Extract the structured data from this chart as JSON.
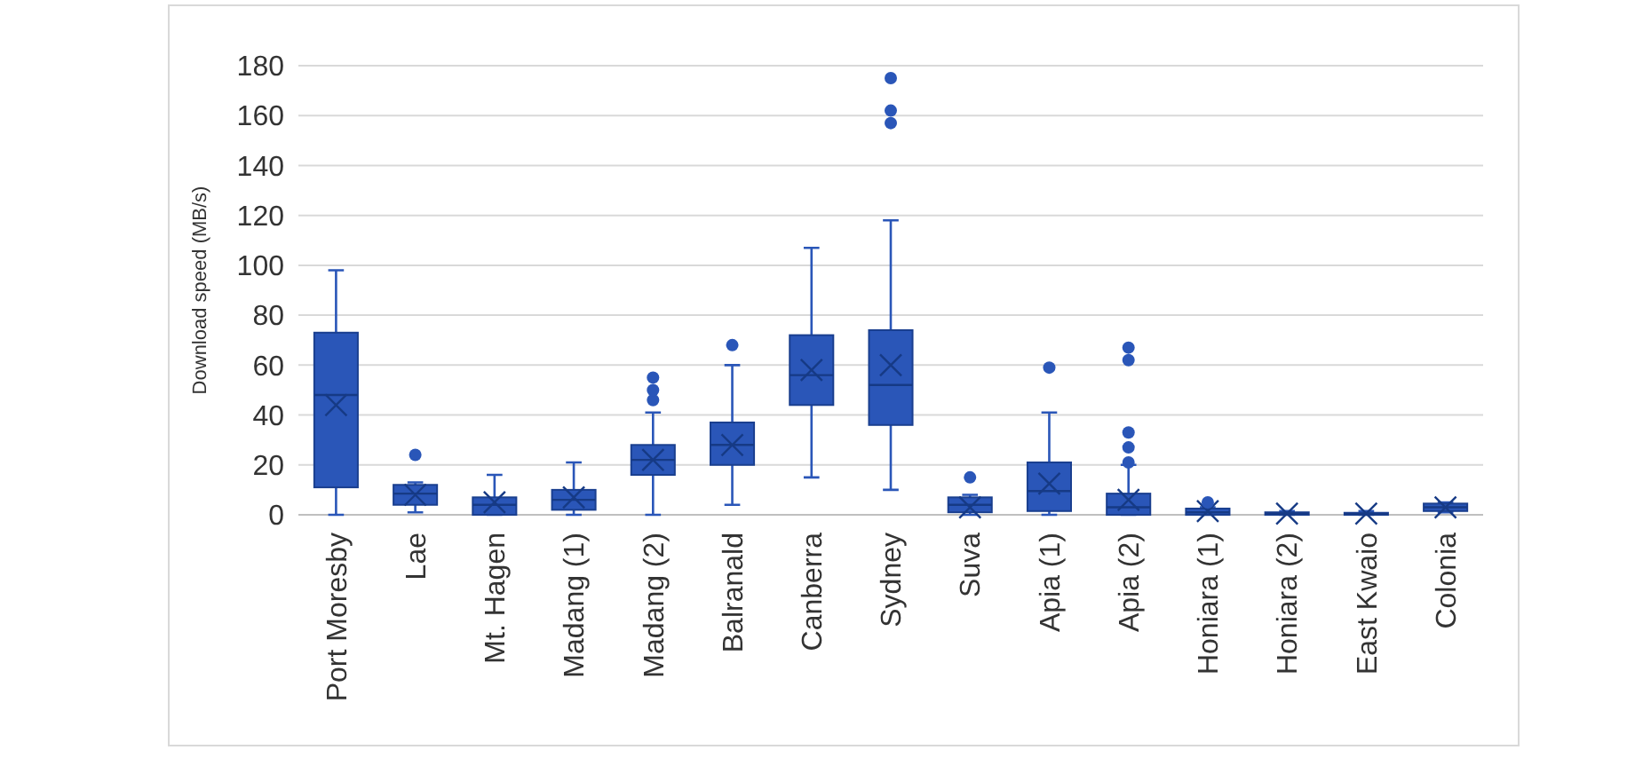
{
  "chart_data": {
    "type": "box",
    "ylabel": "Download speed (MB/s)",
    "categories": [
      "Port Moresby",
      "Lae",
      "Mt. Hagen",
      "Madang (1)",
      "Madang (2)",
      "Balranald",
      "Canberra",
      "Sydney",
      "Suva",
      "Apia (1)",
      "Apia (2)",
      "Honiara (1)",
      "Honiara (2)",
      "East Kwaio",
      "Colonia"
    ],
    "color": "#2a56b8",
    "ylim": [
      0,
      180
    ],
    "yticks": [
      0,
      20,
      40,
      60,
      80,
      100,
      120,
      140,
      160,
      180
    ],
    "grid": "y",
    "boxes": [
      {
        "low": 0,
        "q1": 11,
        "median": 48,
        "q3": 73,
        "high": 98,
        "mean": 44
      },
      {
        "low": 1,
        "q1": 4,
        "median": 8.5,
        "q3": 12,
        "high": 13,
        "mean": 8,
        "outliers": [
          24
        ]
      },
      {
        "low": 0,
        "q1": 0,
        "median": 4,
        "q3": 7,
        "high": 16,
        "mean": 5
      },
      {
        "low": 0,
        "q1": 2,
        "median": 6,
        "q3": 10,
        "high": 21,
        "mean": 7
      },
      {
        "low": 0,
        "q1": 16,
        "median": 22,
        "q3": 28,
        "high": 41,
        "mean": 22,
        "outliers": [
          46,
          50,
          55
        ]
      },
      {
        "low": 4,
        "q1": 20,
        "median": 28,
        "q3": 37,
        "high": 60,
        "mean": 28,
        "outliers": [
          68
        ]
      },
      {
        "low": 15,
        "q1": 44,
        "median": 56,
        "q3": 72,
        "high": 107,
        "mean": 58
      },
      {
        "low": 10,
        "q1": 36,
        "median": 52,
        "q3": 74,
        "high": 118,
        "mean": 60,
        "outliers": [
          157,
          162,
          175
        ]
      },
      {
        "low": 0,
        "q1": 1,
        "median": 4,
        "q3": 7,
        "high": 8,
        "mean": 3,
        "outliers": [
          15
        ]
      },
      {
        "low": 0,
        "q1": 1.5,
        "median": 9.5,
        "q3": 21,
        "high": 41,
        "mean": 12.5,
        "outliers": [
          59
        ]
      },
      {
        "low": 0,
        "q1": 0,
        "median": 3,
        "q3": 8.5,
        "high": 20,
        "mean": 6,
        "outliers": [
          21,
          27,
          33,
          62,
          67
        ]
      },
      {
        "low": 0,
        "q1": 0,
        "median": 1,
        "q3": 2.5,
        "high": 3,
        "mean": 1.5,
        "outliers": [
          5
        ]
      },
      {
        "low": 0,
        "q1": 0,
        "median": 0.5,
        "q3": 1,
        "high": 1.5,
        "mean": 0.5
      },
      {
        "low": 0,
        "q1": 0,
        "median": 0.3,
        "q3": 0.8,
        "high": 1.5,
        "mean": 0.5
      },
      {
        "low": 1,
        "q1": 1.5,
        "median": 3,
        "q3": 4.5,
        "high": 5,
        "mean": 3
      }
    ]
  }
}
